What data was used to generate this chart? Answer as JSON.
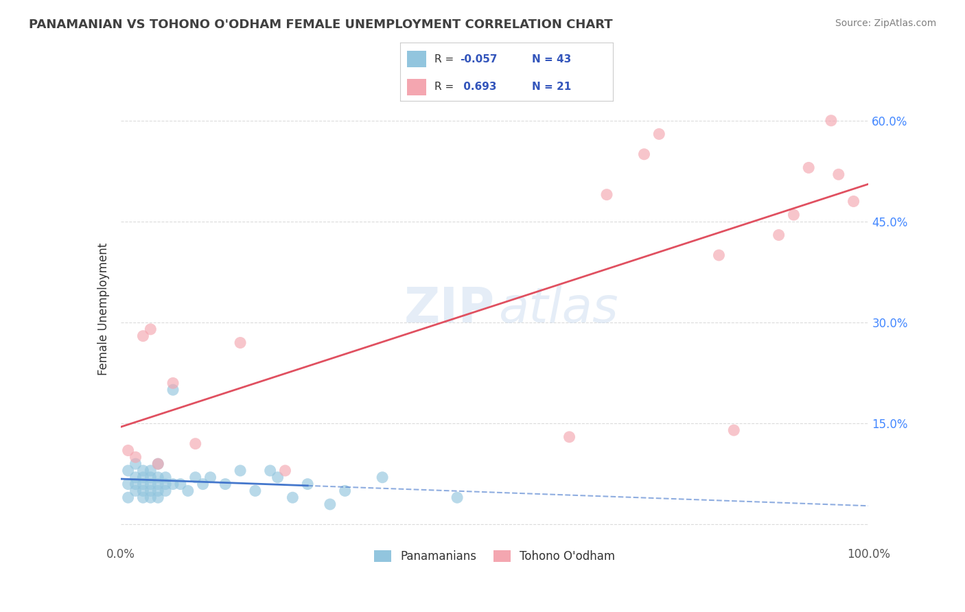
{
  "title": "PANAMANIAN VS TOHONO O'ODHAM FEMALE UNEMPLOYMENT CORRELATION CHART",
  "source": "Source: ZipAtlas.com",
  "ylabel": "Female Unemployment",
  "xlim": [
    0.0,
    1.0
  ],
  "ylim": [
    -0.03,
    0.67
  ],
  "yticks": [
    0.0,
    0.15,
    0.3,
    0.45,
    0.6
  ],
  "ytick_labels": [
    "",
    "15.0%",
    "30.0%",
    "45.0%",
    "60.0%"
  ],
  "xticks": [
    0.0,
    1.0
  ],
  "xtick_labels": [
    "0.0%",
    "100.0%"
  ],
  "blue_color": "#92c5de",
  "pink_color": "#f4a6b0",
  "blue_line_color": "#4477cc",
  "pink_line_color": "#e05060",
  "blue_scatter_x": [
    0.01,
    0.01,
    0.01,
    0.02,
    0.02,
    0.02,
    0.02,
    0.03,
    0.03,
    0.03,
    0.03,
    0.03,
    0.04,
    0.04,
    0.04,
    0.04,
    0.04,
    0.05,
    0.05,
    0.05,
    0.05,
    0.05,
    0.06,
    0.06,
    0.06,
    0.07,
    0.07,
    0.08,
    0.09,
    0.1,
    0.11,
    0.12,
    0.14,
    0.16,
    0.18,
    0.2,
    0.21,
    0.23,
    0.25,
    0.28,
    0.3,
    0.35,
    0.45
  ],
  "blue_scatter_y": [
    0.04,
    0.06,
    0.08,
    0.05,
    0.06,
    0.07,
    0.09,
    0.04,
    0.05,
    0.06,
    0.07,
    0.08,
    0.04,
    0.05,
    0.06,
    0.07,
    0.08,
    0.04,
    0.05,
    0.06,
    0.07,
    0.09,
    0.05,
    0.06,
    0.07,
    0.06,
    0.2,
    0.06,
    0.05,
    0.07,
    0.06,
    0.07,
    0.06,
    0.08,
    0.05,
    0.08,
    0.07,
    0.04,
    0.06,
    0.03,
    0.05,
    0.07,
    0.04
  ],
  "pink_scatter_x": [
    0.01,
    0.02,
    0.03,
    0.04,
    0.05,
    0.07,
    0.1,
    0.16,
    0.22,
    0.6,
    0.65,
    0.7,
    0.72,
    0.8,
    0.82,
    0.88,
    0.9,
    0.92,
    0.95,
    0.96,
    0.98
  ],
  "pink_scatter_y": [
    0.11,
    0.1,
    0.28,
    0.29,
    0.09,
    0.21,
    0.12,
    0.27,
    0.08,
    0.13,
    0.49,
    0.55,
    0.58,
    0.4,
    0.14,
    0.43,
    0.46,
    0.53,
    0.6,
    0.52,
    0.48
  ],
  "grid_color": "#cccccc",
  "background_color": "#ffffff",
  "title_color": "#404040",
  "source_color": "#808080",
  "right_tick_color": "#4488ff",
  "watermark_color": "#ccddf0"
}
